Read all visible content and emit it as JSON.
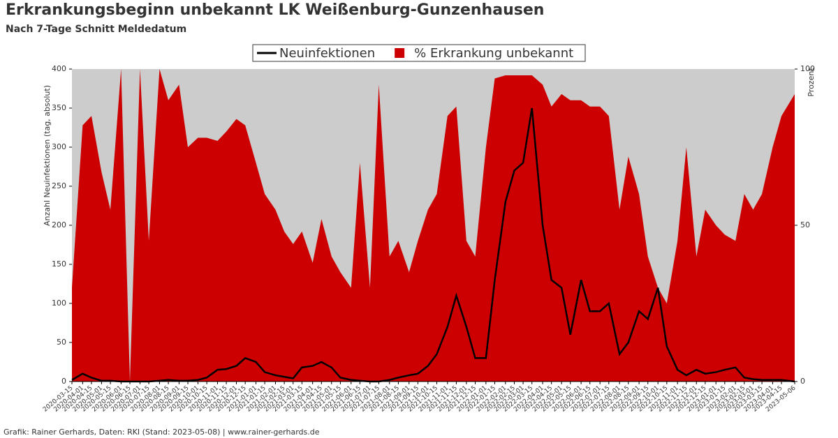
{
  "chart_data": {
    "type": "line",
    "title": "Erkrankungsbeginn unbekannt LK Weißenburg-Gunzenhausen",
    "subtitle": "Nach 7-Tage Schnitt Meldedatum",
    "y_label": "Anzahl Neuinfektionen (tag, absolut)",
    "y2_label": "Prozent",
    "footer": "Grafik: Rainer Gerhards, Daten: RKI (Stand: 2023-05-08) | www.rainer-gerhards.de",
    "x": [
      "2020-03-15",
      "2020-04-01",
      "2020-04-15",
      "2020-05-01",
      "2020-05-15",
      "2020-06-01",
      "2020-06-15",
      "2020-07-01",
      "2020-07-15",
      "2020-08-01",
      "2020-08-15",
      "2020-09-01",
      "2020-09-15",
      "2020-10-01",
      "2020-10-15",
      "2020-11-01",
      "2020-11-15",
      "2020-12-01",
      "2020-12-15",
      "2021-01-01",
      "2021-01-15",
      "2021-02-01",
      "2021-02-15",
      "2021-03-01",
      "2021-03-15",
      "2021-04-01",
      "2021-04-15",
      "2021-05-01",
      "2021-05-15",
      "2021-06-01",
      "2021-06-15",
      "2021-07-01",
      "2021-07-15",
      "2021-08-01",
      "2021-08-15",
      "2021-09-01",
      "2021-09-15",
      "2021-10-01",
      "2021-10-15",
      "2021-11-01",
      "2021-11-15",
      "2021-12-01",
      "2021-12-15",
      "2022-01-01",
      "2022-01-15",
      "2022-02-01",
      "2022-02-15",
      "2022-03-01",
      "2022-03-15",
      "2022-04-01",
      "2022-04-15",
      "2022-05-01",
      "2022-05-15",
      "2022-06-01",
      "2022-06-15",
      "2022-07-01",
      "2022-07-15",
      "2022-08-01",
      "2022-08-15",
      "2022-09-01",
      "2022-09-15",
      "2022-10-01",
      "2022-10-15",
      "2022-11-01",
      "2022-11-15",
      "2022-12-01",
      "2022-12-15",
      "2023-01-01",
      "2023-01-15",
      "2023-02-01",
      "2023-02-15",
      "2023-03-01",
      "2023-03-15",
      "2023-04-01",
      "2023-04-15",
      "2023-05-06"
    ],
    "series": [
      {
        "name": "Neuinfektionen",
        "type": "line",
        "color": "#000000",
        "values": [
          2,
          10,
          5,
          1,
          1,
          0,
          0,
          0,
          0,
          1,
          2,
          1,
          1,
          2,
          5,
          15,
          16,
          20,
          30,
          25,
          12,
          8,
          6,
          4,
          18,
          20,
          25,
          18,
          5,
          2,
          1,
          0,
          0,
          2,
          5,
          8,
          10,
          20,
          35,
          70,
          110,
          70,
          30,
          30,
          130,
          230,
          270,
          280,
          350,
          200,
          130,
          120,
          60,
          130,
          90,
          90,
          100,
          35,
          50,
          90,
          80,
          120,
          45,
          15,
          8,
          15,
          10,
          12,
          15,
          18,
          5,
          3,
          2,
          2,
          2,
          0
        ]
      },
      {
        "name": "% Erkrankung unbekannt",
        "type": "area",
        "axis": "y2",
        "color": "#cc0000",
        "values": [
          30,
          82,
          85,
          67,
          55,
          100,
          0,
          100,
          45,
          100,
          90,
          95,
          75,
          78,
          78,
          77,
          80,
          84,
          82,
          70,
          60,
          55,
          48,
          44,
          48,
          38,
          52,
          40,
          35,
          30,
          70,
          30,
          95,
          40,
          45,
          35,
          45,
          55,
          60,
          85,
          88,
          45,
          40,
          75,
          97,
          98,
          98,
          98,
          98,
          95,
          88,
          92,
          90,
          90,
          88,
          88,
          85,
          55,
          72,
          60,
          40,
          30,
          25,
          45,
          75,
          40,
          55,
          50,
          47,
          45,
          60,
          55,
          60,
          75,
          85,
          92
        ]
      }
    ],
    "ylim": [
      0,
      400
    ],
    "yticks": [
      0,
      50,
      100,
      150,
      200,
      250,
      300,
      350,
      400
    ],
    "y2lim": [
      0,
      100
    ],
    "y2ticks": [
      0,
      50,
      100
    ],
    "background": "#cccccc"
  }
}
